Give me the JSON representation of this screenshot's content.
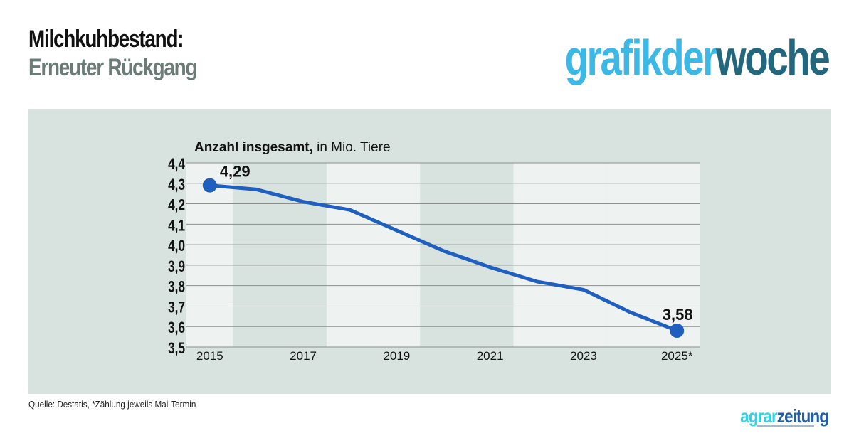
{
  "header": {
    "title": "Milchkuhbestand:",
    "subtitle": "Erneuter Rückgang"
  },
  "brand": {
    "part1": "grafikder",
    "part2": "woche"
  },
  "footer": {
    "source": "Quelle: Destatis, *Zählung jeweils Mai-Termin",
    "logo_part1": "agrar",
    "logo_part2": "zeitung"
  },
  "colors": {
    "title": "#111111",
    "subtitle": "#6b7b78",
    "brand_light": "#3bb8e6",
    "brand_dark": "#23677f",
    "panel": "#d8e3df",
    "band_light": "#eef2f0",
    "line": "#1f5fbf",
    "logo_light": "#2fd3e6",
    "logo_dark": "#1f5fa8"
  },
  "chart_data": {
    "type": "line",
    "title_bold": "Anzahl insgesamt,",
    "title_rest": " in Mio. Tiere",
    "x": [
      2015,
      2016,
      2017,
      2018,
      2019,
      2020,
      2021,
      2022,
      2023,
      2024,
      2025
    ],
    "x_tick_labels": [
      "2015",
      "2017",
      "2019",
      "2021",
      "2023",
      "2025*"
    ],
    "x_tick_values": [
      2015,
      2017,
      2019,
      2021,
      2023,
      2025
    ],
    "series": [
      {
        "values": [
          4.29,
          4.27,
          4.21,
          4.17,
          4.07,
          3.97,
          3.89,
          3.82,
          3.78,
          3.67,
          3.58
        ]
      }
    ],
    "ylim": [
      3.5,
      4.4
    ],
    "y_ticks": [
      "3,5",
      "3,6",
      "3,7",
      "3,8",
      "3,9",
      "4,0",
      "4,1",
      "4,2",
      "4,3",
      "4,4"
    ],
    "y_tick_values": [
      3.5,
      3.6,
      3.7,
      3.8,
      3.9,
      4.0,
      4.1,
      4.2,
      4.3,
      4.4
    ],
    "annotations": [
      {
        "x": 2015,
        "y": 4.29,
        "label": "4,29"
      },
      {
        "x": 2025,
        "y": 3.58,
        "label": "3,58"
      }
    ],
    "grid": true
  }
}
